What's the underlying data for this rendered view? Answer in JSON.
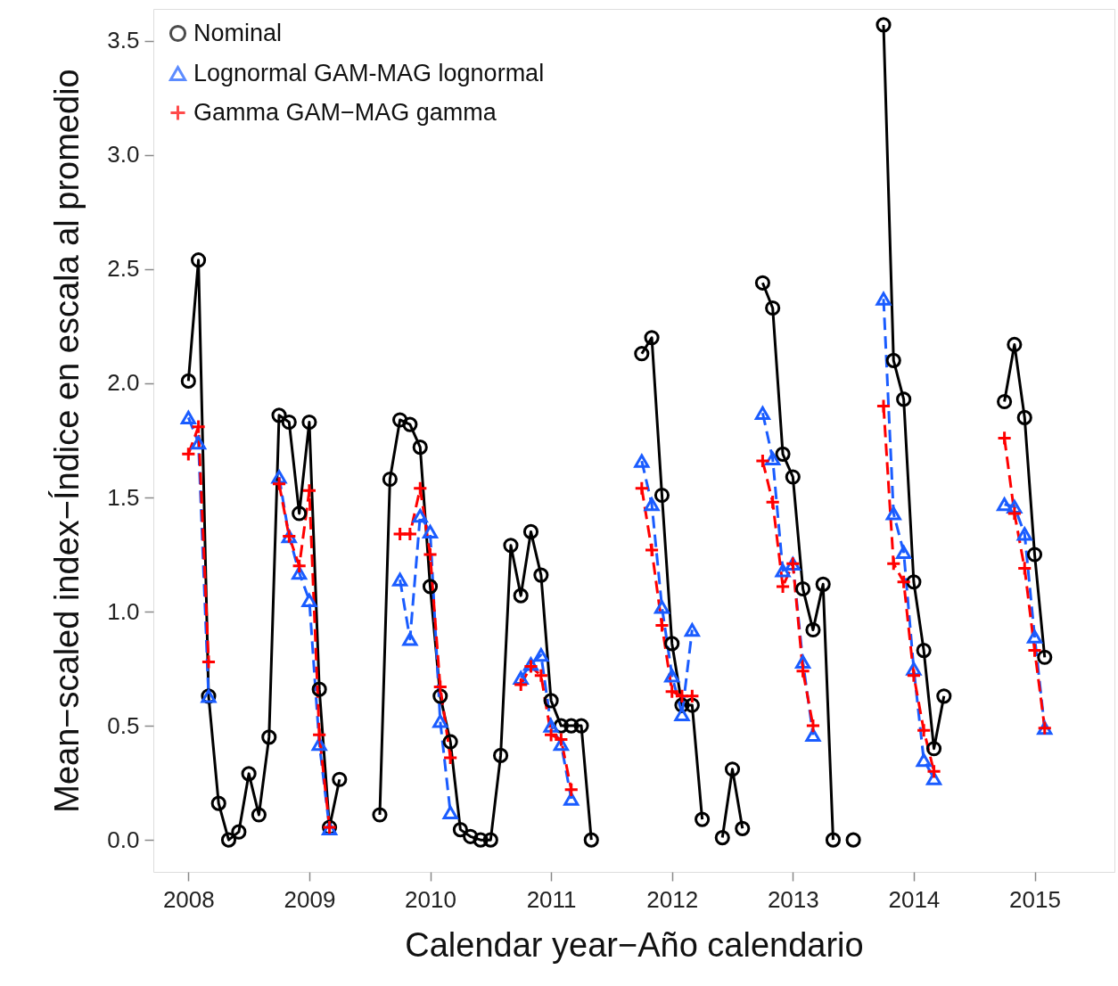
{
  "chart_data": {
    "type": "line",
    "xlabel": "Calendar year−Año calendario",
    "ylabel": "Mean−scaled index−Índice en escala al promedio",
    "xlim": [
      2007.71,
      2015.66
    ],
    "ylim": [
      -0.14,
      3.64
    ],
    "xticks": [
      2008,
      2009,
      2010,
      2011,
      2012,
      2013,
      2014,
      2015
    ],
    "yticks": [
      {
        "value": 0,
        "label": "0.0"
      },
      {
        "value": 0.5,
        "label": "0.5"
      },
      {
        "value": 1,
        "label": "1.0"
      },
      {
        "value": 1.5,
        "label": "1.5"
      },
      {
        "value": 2,
        "label": "2.0"
      },
      {
        "value": 2.5,
        "label": "2.5"
      },
      {
        "value": 3,
        "label": "3.0"
      },
      {
        "value": 3.5,
        "label": "3.5"
      }
    ],
    "grid": false,
    "legend": "top left",
    "series": [
      {
        "name": "Nominal",
        "color": "#000000",
        "marker": "circle",
        "line_style": "solid",
        "x": [
          2008.0,
          2008.083,
          2008.167,
          2008.25,
          2008.333,
          2008.417,
          2008.5,
          2008.583,
          2008.667,
          2008.75,
          2008.833,
          2008.917,
          2009.0,
          2009.083,
          2009.167,
          2009.25,
          2009.333,
          2009.583,
          2009.667,
          2009.75,
          2009.833,
          2009.917,
          2010.0,
          2010.083,
          2010.167,
          2010.25,
          2010.333,
          2010.417,
          2010.5,
          2010.583,
          2010.667,
          2010.75,
          2010.833,
          2010.917,
          2011.0,
          2011.083,
          2011.167,
          2011.25,
          2011.333,
          2011.417,
          2011.75,
          2011.833,
          2011.917,
          2012.0,
          2012.083,
          2012.167,
          2012.25,
          2012.333,
          2012.417,
          2012.5,
          2012.583,
          2012.667,
          2012.75,
          2012.833,
          2012.917,
          2013.0,
          2013.083,
          2013.167,
          2013.25,
          2013.333,
          2013.417,
          2013.5,
          2013.583,
          2013.75,
          2013.833,
          2013.917,
          2014.0,
          2014.083,
          2014.167,
          2014.25,
          2014.333,
          2014.75,
          2014.833,
          2014.917,
          2015.0,
          2015.083
        ],
        "values": [
          2.01,
          2.54,
          0.63,
          0.16,
          0.0,
          0.035,
          0.29,
          0.11,
          0.45,
          1.86,
          1.83,
          1.43,
          1.83,
          0.66,
          0.055,
          0.265,
          null,
          0.11,
          1.58,
          1.84,
          1.82,
          1.72,
          1.11,
          0.63,
          0.43,
          0.045,
          0.015,
          0.0,
          0.0,
          0.37,
          1.29,
          1.07,
          1.35,
          1.16,
          0.61,
          0.5,
          0.5,
          0.5,
          0.0,
          null,
          2.13,
          2.2,
          1.51,
          0.86,
          0.59,
          0.59,
          0.09,
          null,
          0.01,
          0.31,
          0.05,
          null,
          2.44,
          2.33,
          1.69,
          1.59,
          1.1,
          0.92,
          1.12,
          0.0,
          null,
          0.0,
          null,
          3.57,
          2.1,
          1.93,
          1.13,
          0.83,
          0.4,
          0.63,
          null,
          1.92,
          2.17,
          1.85,
          1.25,
          0.8
        ]
      },
      {
        "name": "Lognormal GAM-MAG lognormal",
        "color": "#1a5cff",
        "marker": "triangle",
        "line_style": "dashed",
        "x": [
          2008.0,
          2008.083,
          2008.167,
          2008.25,
          2008.75,
          2008.833,
          2008.917,
          2009.0,
          2009.083,
          2009.167,
          2009.25,
          2009.75,
          2009.833,
          2009.917,
          2010.0,
          2010.083,
          2010.167,
          2010.25,
          2010.75,
          2010.833,
          2010.917,
          2011.0,
          2011.083,
          2011.167,
          2011.25,
          2011.75,
          2011.833,
          2011.917,
          2012.0,
          2012.083,
          2012.167,
          2012.25,
          2012.75,
          2012.833,
          2012.917,
          2013.0,
          2013.083,
          2013.167,
          2013.25,
          2013.75,
          2013.833,
          2013.917,
          2014.0,
          2014.083,
          2014.167,
          2014.25,
          2014.75,
          2014.833,
          2014.917,
          2015.0,
          2015.083
        ],
        "values": [
          1.85,
          1.74,
          0.63,
          null,
          1.59,
          1.33,
          1.17,
          1.05,
          0.42,
          0.05,
          null,
          1.14,
          0.88,
          1.42,
          1.35,
          0.52,
          0.12,
          null,
          0.71,
          0.77,
          0.81,
          0.5,
          0.42,
          0.18,
          null,
          1.66,
          1.47,
          1.02,
          0.72,
          0.55,
          0.92,
          null,
          1.87,
          1.67,
          1.18,
          1.21,
          0.78,
          0.46,
          null,
          2.37,
          1.43,
          1.26,
          0.75,
          0.35,
          0.27,
          null,
          1.47,
          1.46,
          1.34,
          0.89,
          0.49
        ]
      },
      {
        "name": "Gamma GAM−MAG gamma",
        "color": "#ff0000",
        "marker": "cross",
        "line_style": "dashed",
        "x": [
          2008.0,
          2008.083,
          2008.167,
          2008.25,
          2008.75,
          2008.833,
          2008.917,
          2009.0,
          2009.083,
          2009.167,
          2009.25,
          2009.75,
          2009.833,
          2009.917,
          2010.0,
          2010.083,
          2010.167,
          2010.25,
          2010.75,
          2010.833,
          2010.917,
          2011.0,
          2011.083,
          2011.167,
          2011.25,
          2011.75,
          2011.833,
          2011.917,
          2012.0,
          2012.083,
          2012.167,
          2012.25,
          2012.75,
          2012.833,
          2012.917,
          2013.0,
          2013.083,
          2013.167,
          2013.25,
          2013.75,
          2013.833,
          2013.917,
          2014.0,
          2014.083,
          2014.167,
          2014.25,
          2014.75,
          2014.833,
          2014.917,
          2015.0,
          2015.083
        ],
        "values": [
          1.69,
          1.81,
          0.78,
          null,
          1.56,
          1.33,
          1.2,
          1.53,
          0.46,
          0.055,
          null,
          1.34,
          1.34,
          1.54,
          1.25,
          0.67,
          0.36,
          null,
          0.68,
          0.76,
          0.72,
          0.46,
          0.44,
          0.22,
          null,
          1.54,
          1.27,
          0.94,
          0.65,
          0.63,
          0.63,
          null,
          1.66,
          1.48,
          1.11,
          1.21,
          0.74,
          0.5,
          null,
          1.9,
          1.21,
          1.13,
          0.72,
          0.48,
          0.3,
          null,
          1.76,
          1.43,
          1.19,
          0.83,
          0.49
        ]
      }
    ]
  }
}
